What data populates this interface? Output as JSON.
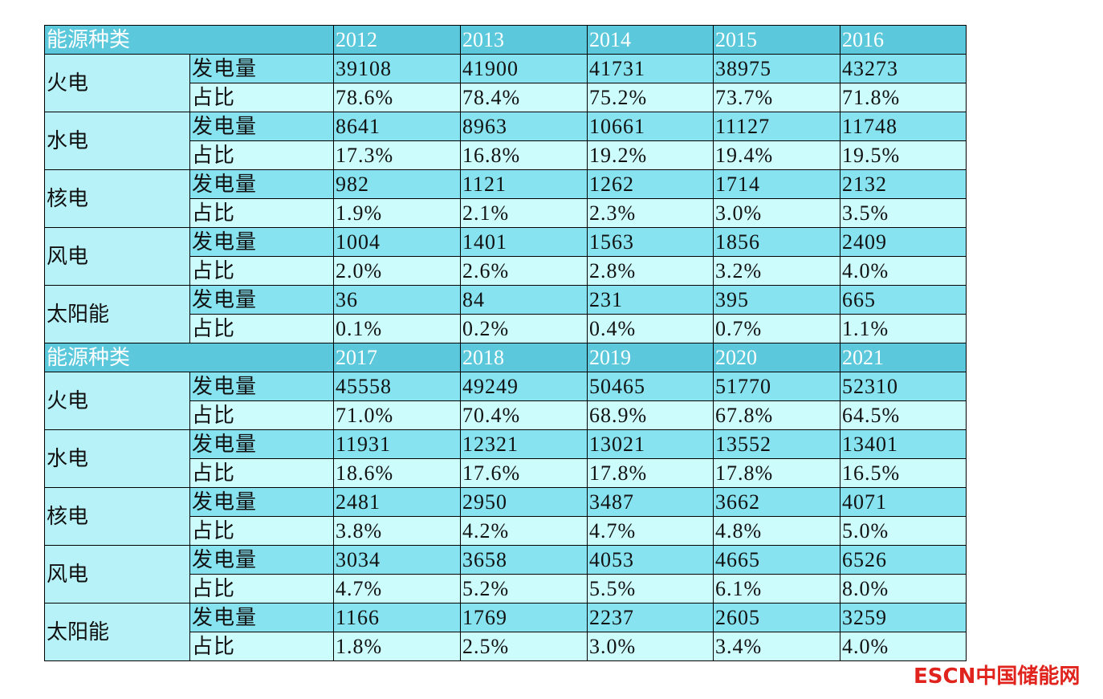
{
  "blocks": [
    {
      "header": {
        "label": "能源种类",
        "years": [
          "2012",
          "2013",
          "2014",
          "2015",
          "2016"
        ]
      },
      "rows": [
        {
          "type": "火电",
          "gen_label": "发电量",
          "gen": [
            "39108",
            "41900",
            "41731",
            "38975",
            "43273"
          ],
          "share_label": "占比",
          "share": [
            "78.6%",
            "78.4%",
            "75.2%",
            "73.7%",
            "71.8%"
          ]
        },
        {
          "type": "水电",
          "gen_label": "发电量",
          "gen": [
            "8641",
            "8963",
            "10661",
            "11127",
            "11748"
          ],
          "share_label": "占比",
          "share": [
            "17.3%",
            "16.8%",
            "19.2%",
            "19.4%",
            "19.5%"
          ]
        },
        {
          "type": "核电",
          "gen_label": "发电量",
          "gen": [
            "982",
            "1121",
            "1262",
            "1714",
            "2132"
          ],
          "share_label": "占比",
          "share": [
            "1.9%",
            "2.1%",
            "2.3%",
            "3.0%",
            "3.5%"
          ]
        },
        {
          "type": "风电",
          "gen_label": "发电量",
          "gen": [
            "1004",
            "1401",
            "1563",
            "1856",
            "2409"
          ],
          "share_label": "占比",
          "share": [
            "2.0%",
            "2.6%",
            "2.8%",
            "3.2%",
            "4.0%"
          ]
        },
        {
          "type": "太阳能",
          "gen_label": "发电量",
          "gen": [
            "36",
            "84",
            "231",
            "395",
            "665"
          ],
          "share_label": "占比",
          "share": [
            "0.1%",
            "0.2%",
            "0.4%",
            "0.7%",
            "1.1%"
          ]
        }
      ]
    },
    {
      "header": {
        "label": "能源种类",
        "years": [
          "2017",
          "2018",
          "2019",
          "2020",
          "2021"
        ]
      },
      "rows": [
        {
          "type": "火电",
          "gen_label": "发电量",
          "gen": [
            "45558",
            "49249",
            "50465",
            "51770",
            "52310"
          ],
          "share_label": "占比",
          "share": [
            "71.0%",
            "70.4%",
            "68.9%",
            "67.8%",
            "64.5%"
          ]
        },
        {
          "type": "水电",
          "gen_label": "发电量",
          "gen": [
            "11931",
            "12321",
            "13021",
            "13552",
            "13401"
          ],
          "share_label": "占比",
          "share": [
            "18.6%",
            "17.6%",
            "17.8%",
            "17.8%",
            "16.5%"
          ]
        },
        {
          "type": "核电",
          "gen_label": "发电量",
          "gen": [
            "2481",
            "2950",
            "3487",
            "3662",
            "4071"
          ],
          "share_label": "占比",
          "share": [
            "3.8%",
            "4.2%",
            "4.7%",
            "4.8%",
            "5.0%"
          ]
        },
        {
          "type": "风电",
          "gen_label": "发电量",
          "gen": [
            "3034",
            "3658",
            "4053",
            "4665",
            "6526"
          ],
          "share_label": "占比",
          "share": [
            "4.7%",
            "5.2%",
            "5.5%",
            "6.1%",
            "8.0%"
          ]
        },
        {
          "type": "太阳能",
          "gen_label": "发电量",
          "gen": [
            "1166",
            "1769",
            "2237",
            "2605",
            "3259"
          ],
          "share_label": "占比",
          "share": [
            "1.8%",
            "2.5%",
            "3.0%",
            "3.4%",
            "4.0%"
          ]
        }
      ]
    }
  ],
  "watermark": "ESCN中国储能网"
}
